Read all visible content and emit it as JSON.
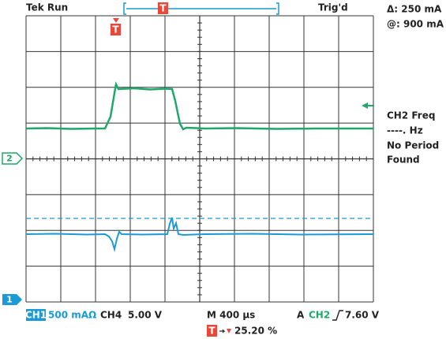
{
  "header": {
    "status": "Tek Run",
    "trigger_state": "Trig'd",
    "trigger_marker": "T"
  },
  "readout": {
    "delta": "Δ: 250 mA",
    "at": "@: 900 mA"
  },
  "measurement": {
    "label": "CH2 Freq",
    "value": "----. Hz",
    "message": [
      "No Period",
      "Found"
    ]
  },
  "markers": {
    "ch2": "2",
    "ch1": "1",
    "trigger_position": "T"
  },
  "footer": {
    "ch1_label": "CH1",
    "ch1_scale": "500 mAΩ",
    "ch4_label": "CH4",
    "ch4_scale": "5.00 V",
    "timebase": "M 400 µs",
    "trigger_source_prefix": "A",
    "trigger_source": "CH2",
    "trigger_level": "7.60 V",
    "trigger_marker": "T",
    "trigger_offset": "25.20 %"
  }
}
